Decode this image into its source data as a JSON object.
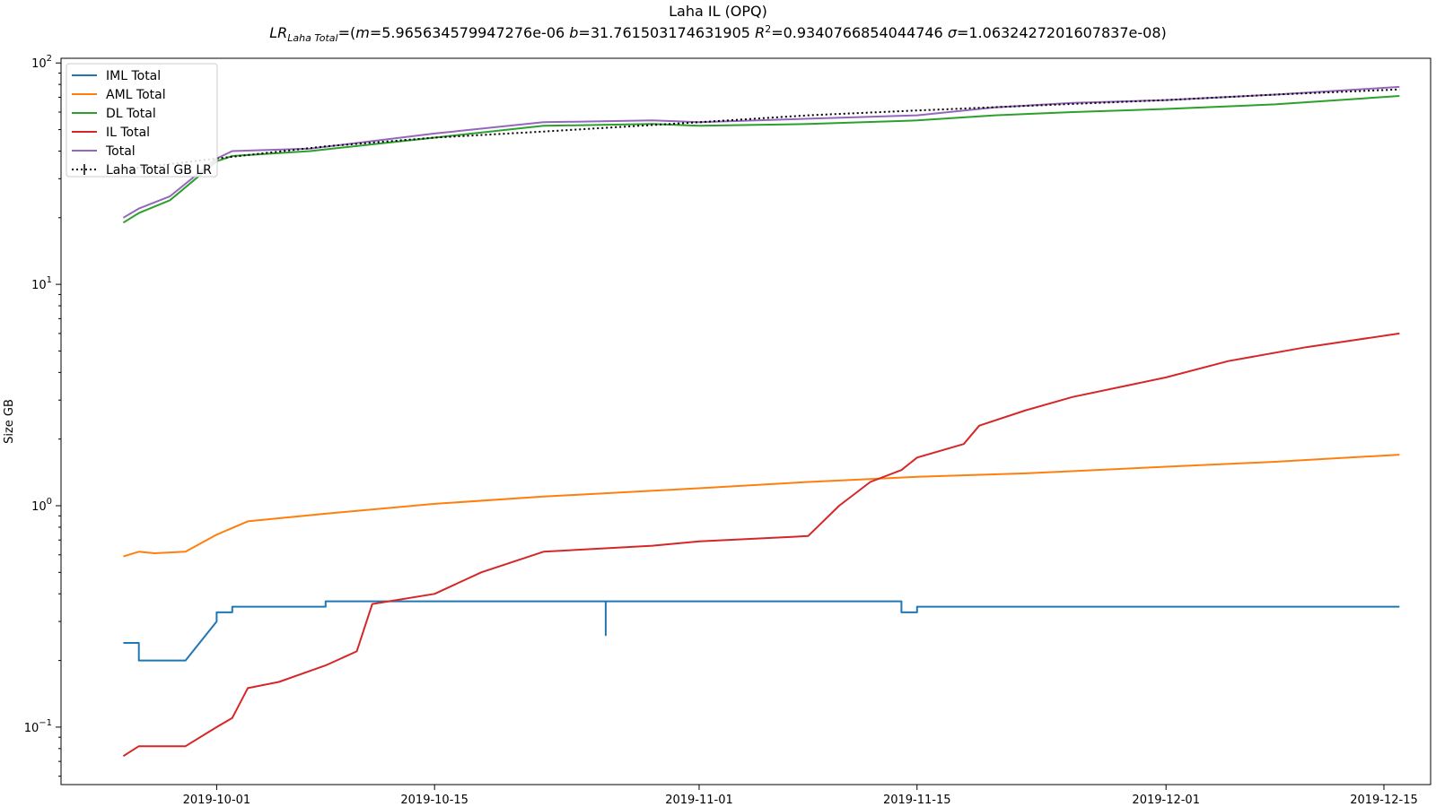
{
  "chart_data": {
    "type": "line",
    "title": "Laha IL (OPQ)",
    "subtitle": "LR=(m=5.965634579947276e-06 b=31.761503174631905 R²=0.9340766854044746 σ=1.0632427201607837e-08)",
    "subtitle_parts": {
      "lr": "LR",
      "lr_sub": "Laha Total",
      "eq_open": "=(",
      "m_label": "m",
      "m_val": "=5.965634579947276e-06 ",
      "b_label": "b",
      "b_val": "=31.761503174631905 ",
      "r_label": "R",
      "r_sup": "2",
      "r_val": "=0.9340766854044746 ",
      "s_label": "σ",
      "s_val": "=1.0632427201607837e-08)"
    },
    "ylabel": "Size GB",
    "xlabel": "",
    "yscale": "log",
    "ylim": [
      0.055,
      105
    ],
    "xlim": [
      "2019-09-21",
      "2019-12-18"
    ],
    "y_ticks": [
      {
        "value": 0.1,
        "base": "10",
        "exp": "−1"
      },
      {
        "value": 1,
        "base": "10",
        "exp": "0"
      },
      {
        "value": 10,
        "base": "10",
        "exp": "1"
      },
      {
        "value": 100,
        "base": "10",
        "exp": "2"
      }
    ],
    "x_ticks": [
      "2019-10-01",
      "2019-10-15",
      "2019-11-01",
      "2019-11-15",
      "2019-12-01",
      "2019-12-15"
    ],
    "legend": {
      "position": "top-left"
    },
    "series": [
      {
        "name": "IML Total",
        "color": "#1f77b4",
        "points": [
          [
            "2019-09-25",
            0.24
          ],
          [
            "2019-09-26",
            0.24
          ],
          [
            "2019-09-26",
            0.2
          ],
          [
            "2019-09-29",
            0.2
          ],
          [
            "2019-10-01",
            0.3
          ],
          [
            "2019-10-01",
            0.33
          ],
          [
            "2019-10-02",
            0.33
          ],
          [
            "2019-10-02",
            0.35
          ],
          [
            "2019-10-08",
            0.35
          ],
          [
            "2019-10-08",
            0.37
          ],
          [
            "2019-10-26",
            0.37
          ],
          [
            "2019-10-26",
            0.26
          ],
          [
            "2019-10-26",
            0.37
          ],
          [
            "2019-11-14",
            0.37
          ],
          [
            "2019-11-14",
            0.33
          ],
          [
            "2019-11-15",
            0.33
          ],
          [
            "2019-11-15",
            0.35
          ],
          [
            "2019-12-16",
            0.35
          ]
        ]
      },
      {
        "name": "AML Total",
        "color": "#ff7f0e",
        "points": [
          [
            "2019-09-25",
            0.59
          ],
          [
            "2019-09-26",
            0.62
          ],
          [
            "2019-09-27",
            0.61
          ],
          [
            "2019-09-29",
            0.62
          ],
          [
            "2019-10-01",
            0.74
          ],
          [
            "2019-10-03",
            0.85
          ],
          [
            "2019-10-08",
            0.92
          ],
          [
            "2019-10-15",
            1.02
          ],
          [
            "2019-10-22",
            1.1
          ],
          [
            "2019-11-01",
            1.2
          ],
          [
            "2019-11-08",
            1.28
          ],
          [
            "2019-11-15",
            1.35
          ],
          [
            "2019-11-22",
            1.4
          ],
          [
            "2019-12-01",
            1.5
          ],
          [
            "2019-12-08",
            1.58
          ],
          [
            "2019-12-16",
            1.7
          ]
        ]
      },
      {
        "name": "DL Total",
        "color": "#2ca02c",
        "points": [
          [
            "2019-09-25",
            19
          ],
          [
            "2019-09-26",
            21
          ],
          [
            "2019-09-28",
            24
          ],
          [
            "2019-10-01",
            36
          ],
          [
            "2019-10-02",
            38
          ],
          [
            "2019-10-07",
            40
          ],
          [
            "2019-10-15",
            46
          ],
          [
            "2019-10-22",
            52
          ],
          [
            "2019-10-29",
            53
          ],
          [
            "2019-11-01",
            52
          ],
          [
            "2019-11-08",
            53
          ],
          [
            "2019-11-15",
            55
          ],
          [
            "2019-11-20",
            58
          ],
          [
            "2019-11-25",
            60
          ],
          [
            "2019-12-01",
            62
          ],
          [
            "2019-12-08",
            65
          ],
          [
            "2019-12-16",
            71
          ]
        ]
      },
      {
        "name": "IL Total",
        "color": "#d62728",
        "points": [
          [
            "2019-09-25",
            0.074
          ],
          [
            "2019-09-26",
            0.082
          ],
          [
            "2019-09-29",
            0.082
          ],
          [
            "2019-10-01",
            0.1
          ],
          [
            "2019-10-02",
            0.11
          ],
          [
            "2019-10-03",
            0.15
          ],
          [
            "2019-10-05",
            0.16
          ],
          [
            "2019-10-08",
            0.19
          ],
          [
            "2019-10-10",
            0.22
          ],
          [
            "2019-10-11",
            0.36
          ],
          [
            "2019-10-15",
            0.4
          ],
          [
            "2019-10-18",
            0.5
          ],
          [
            "2019-10-22",
            0.62
          ],
          [
            "2019-10-29",
            0.66
          ],
          [
            "2019-11-01",
            0.69
          ],
          [
            "2019-11-08",
            0.73
          ],
          [
            "2019-11-10",
            1.0
          ],
          [
            "2019-11-12",
            1.28
          ],
          [
            "2019-11-14",
            1.45
          ],
          [
            "2019-11-15",
            1.65
          ],
          [
            "2019-11-18",
            1.9
          ],
          [
            "2019-11-19",
            2.3
          ],
          [
            "2019-11-22",
            2.7
          ],
          [
            "2019-11-25",
            3.1
          ],
          [
            "2019-12-01",
            3.8
          ],
          [
            "2019-12-05",
            4.5
          ],
          [
            "2019-12-10",
            5.2
          ],
          [
            "2019-12-16",
            6.0
          ]
        ]
      },
      {
        "name": "Total",
        "color": "#9467bd",
        "points": [
          [
            "2019-09-25",
            20
          ],
          [
            "2019-09-26",
            22
          ],
          [
            "2019-09-28",
            25
          ],
          [
            "2019-10-01",
            37
          ],
          [
            "2019-10-02",
            40
          ],
          [
            "2019-10-07",
            41
          ],
          [
            "2019-10-15",
            48
          ],
          [
            "2019-10-22",
            54
          ],
          [
            "2019-10-29",
            55
          ],
          [
            "2019-11-01",
            54
          ],
          [
            "2019-11-08",
            56
          ],
          [
            "2019-11-15",
            58
          ],
          [
            "2019-11-20",
            63
          ],
          [
            "2019-11-25",
            66
          ],
          [
            "2019-12-01",
            68
          ],
          [
            "2019-12-08",
            72
          ],
          [
            "2019-12-16",
            78
          ]
        ]
      },
      {
        "name": "Laha Total GB LR",
        "color": "#000000",
        "style": "dotted",
        "points": [
          [
            "2019-09-25",
            33
          ],
          [
            "2019-10-01",
            37
          ],
          [
            "2019-10-08",
            42
          ],
          [
            "2019-10-15",
            46
          ],
          [
            "2019-10-22",
            49
          ],
          [
            "2019-11-01",
            54
          ],
          [
            "2019-11-08",
            58
          ],
          [
            "2019-11-15",
            61
          ],
          [
            "2019-11-22",
            64
          ],
          [
            "2019-12-01",
            68
          ],
          [
            "2019-12-08",
            72
          ],
          [
            "2019-12-16",
            76
          ]
        ]
      }
    ]
  }
}
